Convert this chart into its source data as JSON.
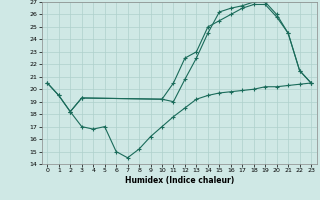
{
  "xlabel": "Humidex (Indice chaleur)",
  "bg_color": "#cfe8e5",
  "grid_color": "#afd0cc",
  "line_color": "#1a6b5a",
  "xlim": [
    -0.5,
    23.5
  ],
  "ylim": [
    14,
    27
  ],
  "xticks": [
    0,
    1,
    2,
    3,
    4,
    5,
    6,
    7,
    8,
    9,
    10,
    11,
    12,
    13,
    14,
    15,
    16,
    17,
    18,
    19,
    20,
    21,
    22,
    23
  ],
  "yticks": [
    14,
    15,
    16,
    17,
    18,
    19,
    20,
    21,
    22,
    23,
    24,
    25,
    26,
    27
  ],
  "series": [
    {
      "x": [
        0,
        1,
        2,
        3,
        10,
        11,
        12,
        13,
        14,
        15,
        16,
        17,
        18,
        19,
        20,
        21,
        22,
        23
      ],
      "y": [
        20.5,
        19.5,
        18.2,
        19.3,
        19.2,
        19.0,
        20.8,
        22.5,
        24.5,
        26.2,
        26.5,
        26.7,
        27.0,
        27.0,
        26.0,
        24.5,
        21.5,
        20.5
      ]
    },
    {
      "x": [
        0,
        1,
        2,
        3,
        4,
        5,
        6,
        7,
        8,
        9,
        10,
        11,
        12,
        13,
        14,
        15,
        16,
        17,
        18,
        19,
        20,
        21,
        22,
        23
      ],
      "y": [
        20.5,
        19.5,
        18.2,
        17.0,
        16.8,
        17.0,
        15.0,
        14.5,
        15.2,
        16.2,
        17.0,
        17.8,
        18.5,
        19.2,
        19.5,
        19.7,
        19.8,
        19.9,
        20.0,
        20.2,
        20.2,
        20.3,
        20.4,
        20.5
      ]
    },
    {
      "x": [
        2,
        3,
        10,
        11,
        12,
        13,
        14,
        15,
        16,
        17,
        18,
        19,
        20,
        21,
        22,
        23
      ],
      "y": [
        18.2,
        19.3,
        19.2,
        20.5,
        22.5,
        23.0,
        25.0,
        25.5,
        26.0,
        26.5,
        26.8,
        26.8,
        25.8,
        24.5,
        21.5,
        20.5
      ]
    }
  ]
}
